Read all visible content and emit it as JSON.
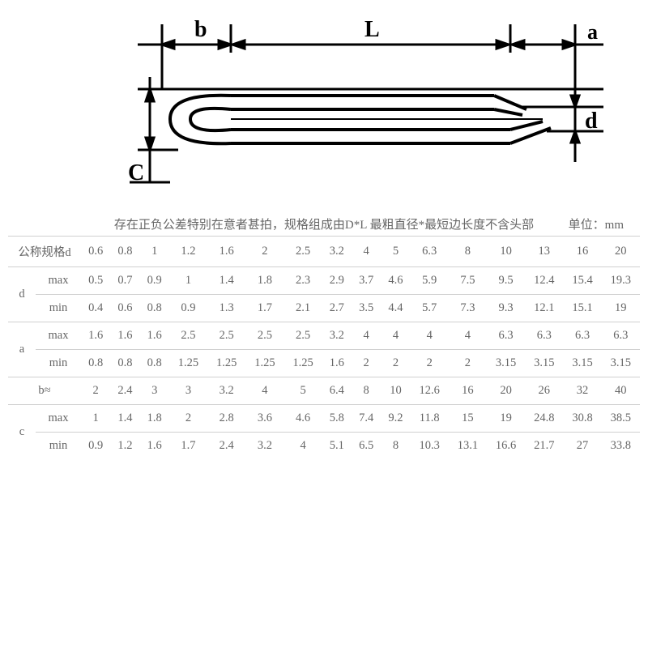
{
  "note": "存在正负公差特别在意者甚拍，规格组成由D*L 最粗直径*最短边长度不含头部",
  "unit_label": "单位：mm",
  "diagram_labels": {
    "b": "b",
    "L": "L",
    "a": "a",
    "d": "d",
    "C": "C"
  },
  "header": {
    "title": "公称规格d",
    "sizes": [
      "0.6",
      "0.8",
      "1",
      "1.2",
      "1.6",
      "2",
      "2.5",
      "3.2",
      "4",
      "5",
      "6.3",
      "8",
      "10",
      "13",
      "16",
      "20"
    ]
  },
  "rows": [
    {
      "group": "d",
      "sub": "max",
      "values": [
        "0.5",
        "0.7",
        "0.9",
        "1",
        "1.4",
        "1.8",
        "2.3",
        "2.9",
        "3.7",
        "4.6",
        "5.9",
        "7.5",
        "9.5",
        "12.4",
        "15.4",
        "19.3"
      ]
    },
    {
      "group": "",
      "sub": "min",
      "values": [
        "0.4",
        "0.6",
        "0.8",
        "0.9",
        "1.3",
        "1.7",
        "2.1",
        "2.7",
        "3.5",
        "4.4",
        "5.7",
        "7.3",
        "9.3",
        "12.1",
        "15.1",
        "19"
      ]
    },
    {
      "group": "a",
      "sub": "max",
      "values": [
        "1.6",
        "1.6",
        "1.6",
        "2.5",
        "2.5",
        "2.5",
        "2.5",
        "3.2",
        "4",
        "4",
        "4",
        "4",
        "6.3",
        "6.3",
        "6.3",
        "6.3"
      ]
    },
    {
      "group": "",
      "sub": "min",
      "values": [
        "0.8",
        "0.8",
        "0.8",
        "1.25",
        "1.25",
        "1.25",
        "1.25",
        "1.6",
        "2",
        "2",
        "2",
        "2",
        "3.15",
        "3.15",
        "3.15",
        "3.15"
      ]
    },
    {
      "group": "b≈",
      "sub": "",
      "values": [
        "2",
        "2.4",
        "3",
        "3",
        "3.2",
        "4",
        "5",
        "6.4",
        "8",
        "10",
        "12.6",
        "16",
        "20",
        "26",
        "32",
        "40"
      ]
    },
    {
      "group": "c",
      "sub": "max",
      "values": [
        "1",
        "1.4",
        "1.8",
        "2",
        "2.8",
        "3.6",
        "4.6",
        "5.8",
        "7.4",
        "9.2",
        "11.8",
        "15",
        "19",
        "24.8",
        "30.8",
        "38.5"
      ]
    },
    {
      "group": "",
      "sub": "min",
      "values": [
        "0.9",
        "1.2",
        "1.6",
        "1.7",
        "2.4",
        "3.2",
        "4",
        "5.1",
        "6.5",
        "8",
        "10.3",
        "13.1",
        "16.6",
        "21.7",
        "27",
        "33.8"
      ]
    }
  ],
  "style": {
    "text_color": "#666666",
    "border_color": "#d0d0d0",
    "diagram_stroke": "#000000",
    "font_size_table": 14.5,
    "font_size_labels": 26
  }
}
